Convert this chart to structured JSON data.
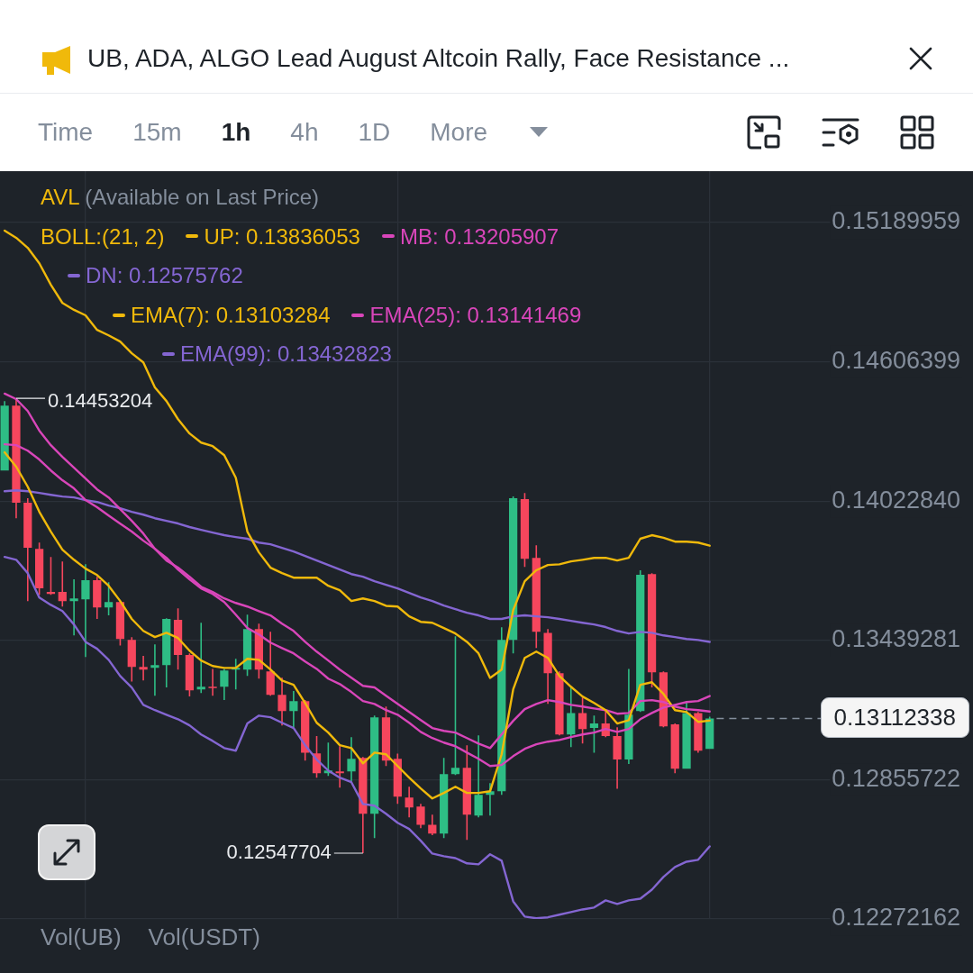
{
  "chart_data": {
    "type": "candlestick",
    "title": "UB, ADA, ALGO Lead August Altcoin Rally, Face Resistance ...",
    "categories": [
      null,
      null,
      null,
      null,
      null,
      null,
      null,
      null,
      null,
      null,
      null,
      null,
      null,
      null,
      null,
      null,
      null,
      null,
      null,
      null,
      null,
      null,
      null,
      null,
      null,
      null,
      null,
      null,
      null,
      null,
      null,
      null,
      null,
      null,
      null,
      null,
      null,
      null,
      null,
      null,
      null,
      null,
      null,
      null,
      null,
      null,
      null,
      null,
      null,
      null,
      null,
      null,
      null,
      null,
      null,
      null,
      null,
      null,
      null,
      null,
      null,
      null
    ],
    "ohlc": [
      [
        0.14151,
        0.14442,
        0.14151,
        0.14423
      ],
      [
        0.14423,
        0.14453204,
        0.13951,
        0.14016
      ],
      [
        0.14016,
        0.14035,
        0.13604,
        0.13827
      ],
      [
        0.13823,
        0.13849,
        0.1363,
        0.13657
      ],
      [
        0.13642,
        0.13789,
        0.1363,
        0.13634
      ],
      [
        0.13642,
        0.1377,
        0.13581,
        0.13604
      ],
      [
        0.13604,
        0.13695,
        0.1346,
        0.13615
      ],
      [
        0.13611,
        0.13758,
        0.1337,
        0.13691
      ],
      [
        0.13691,
        0.13706,
        0.13529,
        0.13577
      ],
      [
        0.13577,
        0.13683,
        0.13544,
        0.136
      ],
      [
        0.136,
        0.13604,
        0.13418,
        0.13445
      ],
      [
        0.13441,
        0.13453,
        0.13267,
        0.13328
      ],
      [
        0.13328,
        0.13374,
        0.13271,
        0.13317
      ],
      [
        0.13324,
        0.13422,
        0.13207,
        0.13336
      ],
      [
        0.13336,
        0.13532,
        0.13242,
        0.13529
      ],
      [
        0.13525,
        0.13573,
        0.13317,
        0.13378
      ],
      [
        0.13378,
        0.13385,
        0.13204,
        0.1323
      ],
      [
        0.13234,
        0.13513,
        0.13219,
        0.13245
      ],
      [
        0.13245,
        0.1332,
        0.13207,
        0.13242
      ],
      [
        0.13245,
        0.1332,
        0.13189,
        0.13313
      ],
      [
        0.13317,
        0.13362,
        0.13234,
        0.13324
      ],
      [
        0.13317,
        0.13547,
        0.1329,
        0.13487
      ],
      [
        0.13487,
        0.13509,
        0.13279,
        0.13317
      ],
      [
        0.13309,
        0.13475,
        0.13207,
        0.13211
      ],
      [
        0.13211,
        0.13283,
        0.13083,
        0.13143
      ],
      [
        0.13143,
        0.13227,
        0.13075,
        0.13185
      ],
      [
        0.13185,
        0.13189,
        0.12936,
        0.12969
      ],
      [
        0.12966,
        0.13038,
        0.12864,
        0.12883
      ],
      [
        0.12883,
        0.13011,
        0.12871,
        0.12894
      ],
      [
        0.1289,
        0.12996,
        0.12822,
        0.12883
      ],
      [
        0.1289,
        0.13034,
        0.12849,
        0.12943
      ],
      [
        0.12947,
        0.12951,
        0.12547704,
        0.12713
      ],
      [
        0.12713,
        0.13124,
        0.12611,
        0.13117
      ],
      [
        0.13117,
        0.13162,
        0.12913,
        0.12936
      ],
      [
        0.12943,
        0.12965,
        0.12754,
        0.12785
      ],
      [
        0.12781,
        0.12826,
        0.12698,
        0.12739
      ],
      [
        0.12743,
        0.12754,
        0.12652,
        0.12667
      ],
      [
        0.12667,
        0.12709,
        0.12623,
        0.1263
      ],
      [
        0.1263,
        0.12947,
        0.12611,
        0.12879
      ],
      [
        0.12879,
        0.13456,
        0.12875,
        0.12905
      ],
      [
        0.12905,
        0.13,
        0.12603,
        0.12709
      ],
      [
        0.12705,
        0.13041,
        0.12698,
        0.12792
      ],
      [
        0.12792,
        0.12841,
        0.12705,
        0.12807
      ],
      [
        0.12807,
        0.13494,
        0.12792,
        0.13441
      ],
      [
        0.13441,
        0.14042,
        0.13385,
        0.14035
      ],
      [
        0.14031,
        0.14057,
        0.13747,
        0.13781
      ],
      [
        0.13785,
        0.13838,
        0.13407,
        0.13475
      ],
      [
        0.13471,
        0.13487,
        0.13173,
        0.13302
      ],
      [
        0.13302,
        0.13309,
        0.13041,
        0.13045
      ],
      [
        0.13045,
        0.13242,
        0.12992,
        0.13135
      ],
      [
        0.13135,
        0.132,
        0.13007,
        0.13068
      ],
      [
        0.13072,
        0.13124,
        0.12969,
        0.13091
      ],
      [
        0.13091,
        0.13147,
        0.13034,
        0.13038
      ],
      [
        0.13038,
        0.13075,
        0.12818,
        0.1294
      ],
      [
        0.1294,
        0.1332,
        0.12921,
        0.13128
      ],
      [
        0.13143,
        0.13733,
        0.13139,
        0.13714
      ],
      [
        0.13717,
        0.13721,
        0.13242,
        0.13305
      ],
      [
        0.13305,
        0.13309,
        0.13075,
        0.13079
      ],
      [
        0.13087,
        0.13091,
        0.12883,
        0.12902
      ],
      [
        0.12902,
        0.13185,
        0.12902,
        0.13135
      ],
      [
        0.13135,
        0.13139,
        0.12969,
        0.12977
      ],
      [
        0.12985,
        0.1312,
        0.12985,
        0.13112338
      ]
    ],
    "colors": [
      "#2ebd85",
      "#f6465d",
      "#f6465d",
      "#f6465d",
      "#f6465d",
      "#f6465d",
      "#2ebd85",
      "#2ebd85",
      "#f6465d",
      "#2ebd85",
      "#f6465d",
      "#f6465d",
      "#f6465d",
      "#2ebd85",
      "#2ebd85",
      "#f6465d",
      "#f6465d",
      "#2ebd85",
      "#f6465d",
      "#2ebd85",
      "#2ebd85",
      "#2ebd85",
      "#f6465d",
      "#f6465d",
      "#f6465d",
      "#2ebd85",
      "#f6465d",
      "#f6465d",
      "#2ebd85",
      "#f6465d",
      "#2ebd85",
      "#f6465d",
      "#2ebd85",
      "#f6465d",
      "#f6465d",
      "#f6465d",
      "#f6465d",
      "#f6465d",
      "#2ebd85",
      "#2ebd85",
      "#f6465d",
      "#2ebd85",
      "#2ebd85",
      "#2ebd85",
      "#2ebd85",
      "#f6465d",
      "#f6465d",
      "#f6465d",
      "#f6465d",
      "#2ebd85",
      "#f6465d",
      "#2ebd85",
      "#f6465d",
      "#f6465d",
      "#2ebd85",
      "#2ebd85",
      "#f6465d",
      "#f6465d",
      "#f6465d",
      "#2ebd85",
      "#f6465d",
      "#2ebd85"
    ],
    "series": [
      {
        "name": "UP: 0.13836053",
        "type": "line",
        "color": "#f0b90b",
        "values": [
          0.15156,
          0.15126,
          0.15084,
          0.15019,
          0.14929,
          0.14853,
          0.14824,
          0.14801,
          0.1474,
          0.14717,
          0.14691,
          0.14642,
          0.14604,
          0.14499,
          0.14442,
          0.14366,
          0.14306,
          0.14268,
          0.14253,
          0.14215,
          0.14121,
          0.13895,
          0.13808,
          0.13744,
          0.13721,
          0.13702,
          0.13702,
          0.13702,
          0.13668,
          0.13649,
          0.13604,
          0.13615,
          0.13604,
          0.13584,
          0.13581,
          0.1354,
          0.13517,
          0.13513,
          0.13491,
          0.13468,
          0.13433,
          0.13385,
          0.13282,
          0.13317,
          0.13566,
          0.13687,
          0.13733,
          0.13755,
          0.13758,
          0.1377,
          0.13777,
          0.13785,
          0.13785,
          0.13774,
          0.13785,
          0.13865,
          0.1388,
          0.13869,
          0.13853,
          0.13853,
          0.13849,
          0.13836
        ]
      },
      {
        "name": "MB: 0.13205907",
        "type": "line",
        "color": "#d946ba",
        "values": [
          0.14473,
          0.1445,
          0.144,
          0.14318,
          0.14257,
          0.14208,
          0.14163,
          0.14117,
          0.14072,
          0.14038,
          0.13989,
          0.1394,
          0.13887,
          0.13823,
          0.13785,
          0.13736,
          0.13695,
          0.13657,
          0.13634,
          0.136,
          0.13547,
          0.13491,
          0.13464,
          0.1343,
          0.13407,
          0.13385,
          0.13351,
          0.1332,
          0.13279,
          0.13256,
          0.13223,
          0.13185,
          0.13173,
          0.13147,
          0.13128,
          0.13094,
          0.13056,
          0.1303,
          0.13011,
          0.12996,
          0.12969,
          0.12943,
          0.12913,
          0.12917,
          0.12954,
          0.12985,
          0.13004,
          0.13015,
          0.13022,
          0.13034,
          0.13045,
          0.13053,
          0.13068,
          0.13056,
          0.13068,
          0.13109,
          0.13135,
          0.13158,
          0.13169,
          0.13181,
          0.13185,
          0.13206
        ]
      },
      {
        "name": "DN: 0.12575762",
        "type": "line",
        "color": "#8466d2",
        "values": [
          0.13789,
          0.13777,
          0.13721,
          0.13619,
          0.13588,
          0.13562,
          0.13506,
          0.13433,
          0.13404,
          0.13358,
          0.1329,
          0.13242,
          0.13169,
          0.13147,
          0.13128,
          0.13109,
          0.13083,
          0.13045,
          0.13018,
          0.12988,
          0.12977,
          0.13091,
          0.13124,
          0.13117,
          0.13094,
          0.13072,
          0.13,
          0.1294,
          0.12894,
          0.12864,
          0.12845,
          0.12754,
          0.12747,
          0.12713,
          0.12675,
          0.12649,
          0.126,
          0.12546,
          0.12535,
          0.12527,
          0.12505,
          0.12501,
          0.12543,
          0.12516,
          0.12346,
          0.12282,
          0.12275,
          0.12279,
          0.1229,
          0.12301,
          0.12312,
          0.1232,
          0.1235,
          0.12335,
          0.1235,
          0.12357,
          0.12395,
          0.12448,
          0.1249,
          0.12512,
          0.1252,
          0.12576
        ]
      },
      {
        "name": "EMA(7): 0.13103284",
        "type": "line",
        "color": "#f0b90b",
        "values": [
          0.14227,
          0.14167,
          0.14083,
          0.13978,
          0.13895,
          0.13819,
          0.13777,
          0.1374,
          0.13713,
          0.13668,
          0.13604,
          0.13529,
          0.13479,
          0.13453,
          0.13471,
          0.13449,
          0.13396,
          0.13355,
          0.13332,
          0.13324,
          0.13324,
          0.13362,
          0.13358,
          0.13317,
          0.13271,
          0.13253,
          0.13177,
          0.13094,
          0.13053,
          0.13,
          0.12988,
          0.12924,
          0.12969,
          0.12962,
          0.12913,
          0.12864,
          0.12819,
          0.12777,
          0.128,
          0.12826,
          0.128,
          0.128,
          0.12807,
          0.12962,
          0.13234,
          0.13366,
          0.13392,
          0.13366,
          0.1329,
          0.13245,
          0.13204,
          0.13177,
          0.13147,
          0.13091,
          0.13105,
          0.13253,
          0.13264,
          0.13215,
          0.13147,
          0.13139,
          0.13098,
          0.13103
        ]
      },
      {
        "name": "EMA(25): 0.13141469",
        "type": "line",
        "color": "#d946ba",
        "values": [
          0.14261,
          0.14257,
          0.14234,
          0.14197,
          0.14151,
          0.1411,
          0.14076,
          0.14027,
          0.13997,
          0.13962,
          0.13928,
          0.13895,
          0.13857,
          0.13823,
          0.13774,
          0.13744,
          0.13706,
          0.13664,
          0.13642,
          0.13615,
          0.13596,
          0.13581,
          0.13562,
          0.13544,
          0.13509,
          0.13479,
          0.13433,
          0.13392,
          0.13355,
          0.13317,
          0.13283,
          0.13249,
          0.13242,
          0.13207,
          0.13173,
          0.13139,
          0.13105,
          0.13072,
          0.1306,
          0.13053,
          0.1303,
          0.13007,
          0.12988,
          0.13045,
          0.13102,
          0.13151,
          0.13173,
          0.13189,
          0.13181,
          0.13169,
          0.13162,
          0.13154,
          0.13147,
          0.13132,
          0.13135,
          0.13185,
          0.13189,
          0.13181,
          0.13162,
          0.13151,
          0.13147,
          0.13141
        ]
      },
      {
        "name": "EMA(99): 0.13432823",
        "type": "line",
        "color": "#8466d2",
        "values": [
          0.14064,
          0.14068,
          0.14064,
          0.14057,
          0.14049,
          0.14042,
          0.14038,
          0.14027,
          0.14019,
          0.14004,
          0.13993,
          0.13978,
          0.13966,
          0.13951,
          0.1394,
          0.13929,
          0.13914,
          0.13902,
          0.13891,
          0.1388,
          0.13872,
          0.13865,
          0.13849,
          0.13842,
          0.13827,
          0.13812,
          0.13793,
          0.13774,
          0.13755,
          0.13736,
          0.13717,
          0.13706,
          0.13687,
          0.13672,
          0.13657,
          0.13638,
          0.13619,
          0.13604,
          0.13585,
          0.1357,
          0.13555,
          0.13544,
          0.13529,
          0.13529,
          0.1354,
          0.13544,
          0.1354,
          0.13536,
          0.13529,
          0.13521,
          0.13513,
          0.13506,
          0.13495,
          0.13479,
          0.13468,
          0.13475,
          0.13471,
          0.1346,
          0.13453,
          0.13445,
          0.13441,
          0.13433
        ]
      }
    ],
    "ylim": [
      0.12272162,
      0.15405
    ],
    "yticks": [
      0.12272162,
      0.12855722,
      0.13439281,
      {
        "value": 0.1402284,
        "label": "0.14022840"
      },
      0.14606399,
      0.15189959
    ],
    "grid": true,
    "legend": "top left",
    "tick_labels": "y",
    "ref_lines": [
      {
        "axis": "y",
        "value": 0.13112338,
        "label": "0.13112338",
        "line_style": "dashed",
        "color": "#848e9c"
      }
    ],
    "annotations": [
      "AVL (Available on Last Price)",
      "BOLL:(21, 2)",
      "Time",
      "15m",
      "1h",
      "4h",
      "1D",
      "More",
      "Vol(UB)",
      "Vol(USDT)",
      "0.14453204",
      "0.12547704"
    ]
  }
}
